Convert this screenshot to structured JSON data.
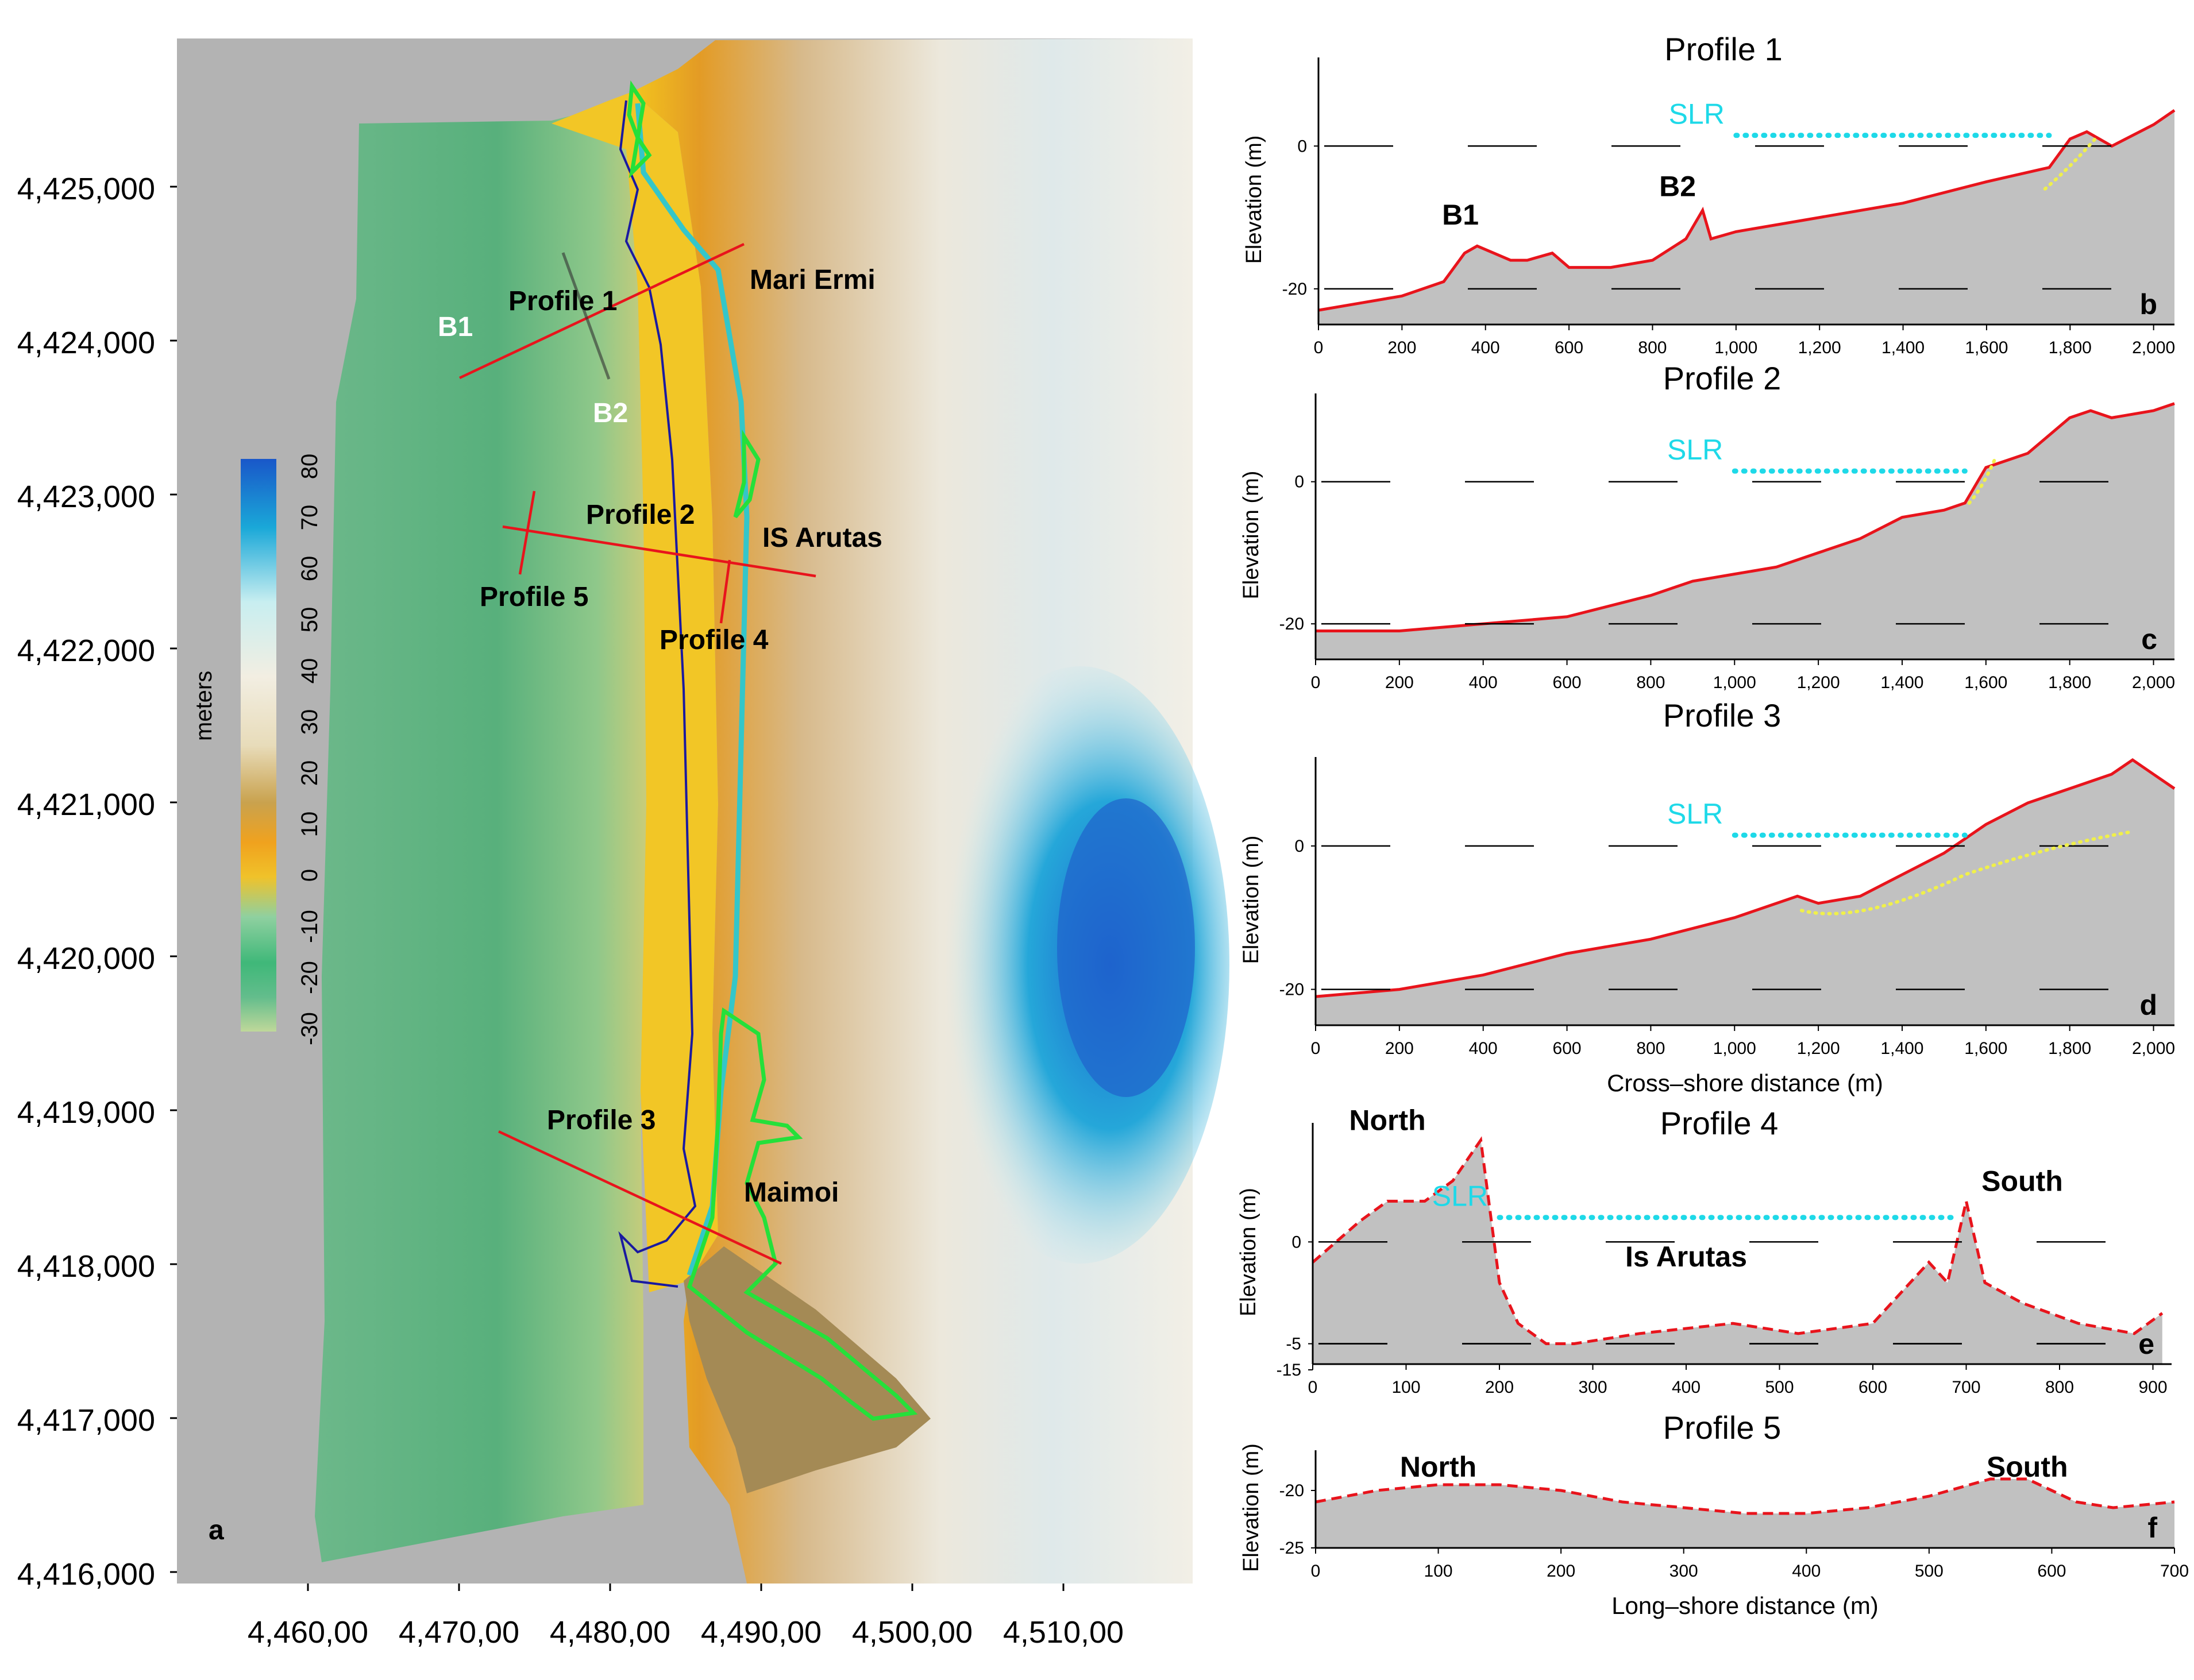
{
  "map": {
    "panel_letter": "a",
    "y_ticks": [
      "4,425,000",
      "4,424,000",
      "4,423,000",
      "4,422,000",
      "4,421,000",
      "4,420,000",
      "4,419,000",
      "4,418,000",
      "4,417,000",
      "4,416,000"
    ],
    "x_ticks": [
      "4,460,00",
      "4,470,00",
      "4,480,00",
      "4,490,00",
      "4,500,00",
      "4,510,00"
    ],
    "colorbar": {
      "label": "meters",
      "ticks": [
        "80",
        "70",
        "60",
        "50",
        "40",
        "30",
        "20",
        "10",
        "0",
        "-10",
        "-20",
        "-30"
      ],
      "colors": [
        "#1957c9",
        "#1aa8d8",
        "#c8eef0",
        "#f2eee2",
        "#e8dcba",
        "#c9a24e",
        "#f0a21e",
        "#f0c22a",
        "#8fd0a0",
        "#3fb879",
        "#63bd8c",
        "#bfd89a"
      ]
    },
    "labels": {
      "profile1": "Profile 1",
      "profile2": "Profile 2",
      "profile3": "Profile 3",
      "profile4": "Profile 4",
      "profile5": "Profile 5",
      "b1": "B1",
      "b2": "B2",
      "mari_ermi": "Mari Ermi",
      "is_arutas": "IS Arutas",
      "maimoi": "Maimoi"
    }
  },
  "profiles": [
    {
      "id": "b",
      "title": "Profile 1",
      "letter": "b",
      "ylabel": "Elevation (m)",
      "y_ticks": [
        "0",
        "-20"
      ],
      "x_ticks": [
        "0",
        "200",
        "400",
        "600",
        "800",
        "1,000",
        "1,200",
        "1,400",
        "1,600",
        "1,800",
        "2,000"
      ],
      "slr": "SLR",
      "annotations": [
        "B1",
        "B2"
      ]
    },
    {
      "id": "c",
      "title": "Profile 2",
      "letter": "c",
      "ylabel": "Elevation (m)",
      "y_ticks": [
        "0",
        "-20"
      ],
      "x_ticks": [
        "0",
        "200",
        "400",
        "600",
        "800",
        "1,000",
        "1,200",
        "1,400",
        "1,600",
        "1,800",
        "2,000"
      ],
      "slr": "SLR"
    },
    {
      "id": "d",
      "title": "Profile 3",
      "letter": "d",
      "ylabel": "Elevation (m)",
      "y_ticks": [
        "0",
        "-20"
      ],
      "x_ticks": [
        "0",
        "200",
        "400",
        "600",
        "800",
        "1,000",
        "1,200",
        "1,400",
        "1,600",
        "1,800",
        "2,000"
      ],
      "slr": "SLR",
      "xlabel": "Cross–shore distance (m)"
    },
    {
      "id": "e",
      "title": "Profile 4",
      "letter": "e",
      "ylabel": "Elevation (m)",
      "y_ticks": [
        "0",
        "-5",
        "-15"
      ],
      "x_ticks": [
        "0",
        "100",
        "200",
        "300",
        "400",
        "500",
        "600",
        "700",
        "800",
        "900"
      ],
      "slr": "SLR",
      "annotations": [
        "North",
        "South",
        "Is Arutas"
      ]
    },
    {
      "id": "f",
      "title": "Profile 5",
      "letter": "f",
      "ylabel": "Elevation (m)",
      "y_ticks": [
        "-20",
        "-25"
      ],
      "x_ticks": [
        "0",
        "100",
        "200",
        "300",
        "400",
        "500",
        "600",
        "700"
      ],
      "annotations": [
        "North",
        "South"
      ],
      "xlabel": "Long–shore distance (m)"
    }
  ],
  "chart_data": [
    {
      "type": "area",
      "title": "Profile 1",
      "ylabel": "Elevation (m)",
      "x": [
        0,
        100,
        200,
        300,
        350,
        380,
        420,
        460,
        500,
        560,
        600,
        700,
        800,
        880,
        900,
        920,
        940,
        1000,
        1200,
        1400,
        1600,
        1750,
        1800,
        1840,
        1900,
        2000,
        2050
      ],
      "y": [
        -23,
        -22,
        -21,
        -19,
        -15,
        -14,
        -15,
        -16,
        -16,
        -15,
        -17,
        -17,
        -16,
        -13,
        -11,
        -9,
        -13,
        -12,
        -10,
        -8,
        -5,
        -3,
        1,
        2,
        0,
        3,
        5
      ],
      "xlim": [
        0,
        2050
      ],
      "ylim": [
        -25,
        10
      ]
    },
    {
      "type": "area",
      "title": "Profile 2",
      "ylabel": "Elevation (m)",
      "x": [
        0,
        200,
        400,
        600,
        800,
        900,
        1000,
        1100,
        1200,
        1300,
        1400,
        1500,
        1550,
        1600,
        1650,
        1700,
        1800,
        1850,
        1900,
        2000,
        2050
      ],
      "y": [
        -21,
        -21,
        -20,
        -19,
        -16,
        -14,
        -13,
        -12,
        -10,
        -8,
        -5,
        -4,
        -3,
        2,
        3,
        4,
        9,
        10,
        9,
        10,
        11
      ],
      "xlim": [
        0,
        2050
      ],
      "ylim": [
        -25,
        10
      ]
    },
    {
      "type": "area",
      "title": "Profile 3",
      "ylabel": "Elevation (m)",
      "x": [
        0,
        200,
        400,
        600,
        800,
        1000,
        1150,
        1200,
        1300,
        1400,
        1500,
        1550,
        1600,
        1700,
        1800,
        1900,
        1950,
        2000,
        2050
      ],
      "y": [
        -21,
        -20,
        -18,
        -15,
        -13,
        -10,
        -7,
        -8,
        -7,
        -4,
        -1,
        1,
        3,
        6,
        8,
        10,
        12,
        10,
        8
      ],
      "xlim": [
        0,
        2050
      ],
      "ylim": [
        -25,
        10
      ]
    },
    {
      "type": "area",
      "title": "Profile 4",
      "ylabel": "Elevation (m)",
      "x": [
        0,
        50,
        80,
        120,
        150,
        180,
        200,
        220,
        250,
        280,
        350,
        450,
        520,
        600,
        640,
        660,
        680,
        700,
        720,
        760,
        820,
        880,
        910
      ],
      "y": [
        -1,
        1,
        2,
        2,
        3,
        5,
        -2,
        -4,
        -5,
        -5,
        -4.5,
        -4,
        -4.5,
        -4,
        -2,
        -1,
        -2,
        2,
        -2,
        -3,
        -4,
        -4.5,
        -3.5
      ],
      "xlim": [
        0,
        920
      ],
      "ylim": [
        -6,
        5
      ]
    },
    {
      "type": "area",
      "title": "Profile 5",
      "ylabel": "Elevation (m)",
      "x": [
        0,
        50,
        100,
        150,
        200,
        250,
        300,
        350,
        400,
        450,
        500,
        550,
        580,
        620,
        650,
        700
      ],
      "y": [
        -21,
        -20,
        -19.5,
        -19.5,
        -20,
        -21,
        -21.5,
        -22,
        -22,
        -21.5,
        -20.5,
        -19,
        -19,
        -21,
        -21.5,
        -21
      ],
      "xlim": [
        0,
        700
      ],
      "ylim": [
        -25,
        -18
      ]
    }
  ]
}
